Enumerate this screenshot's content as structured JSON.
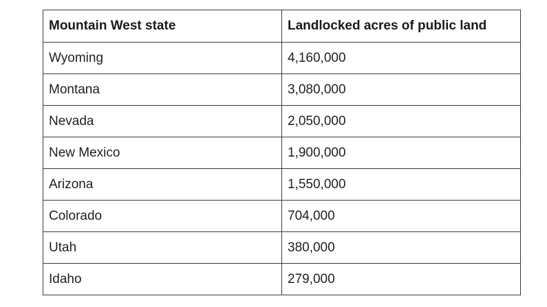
{
  "table": {
    "headers": [
      "Mountain West state",
      "Landlocked acres of public land"
    ],
    "rows": [
      [
        "Wyoming",
        "4,160,000"
      ],
      [
        "Montana",
        "3,080,000"
      ],
      [
        "Nevada",
        "2,050,000"
      ],
      [
        "New Mexico",
        "1,900,000"
      ],
      [
        "Arizona",
        "1,550,000"
      ],
      [
        "Colorado",
        "704,000"
      ],
      [
        "Utah",
        "380,000"
      ],
      [
        "Idaho",
        "279,000"
      ]
    ]
  }
}
